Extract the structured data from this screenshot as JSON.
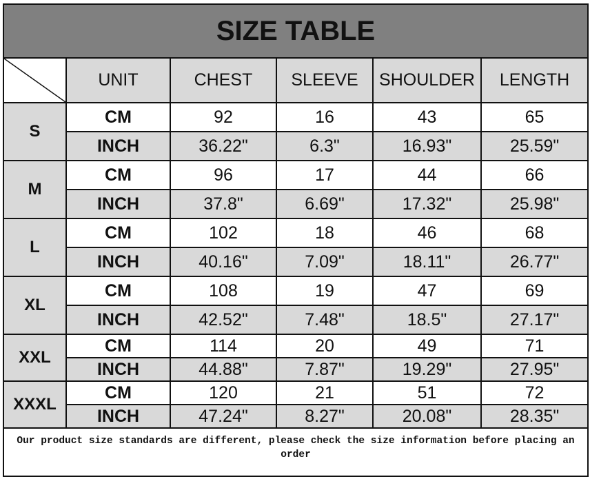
{
  "title": "SIZE TABLE",
  "headers": [
    "UNIT",
    "CHEST",
    "SLEEVE",
    "SHOULDER",
    "LENGTH"
  ],
  "sizes": [
    {
      "size": "S",
      "cm": {
        "unit": "CM",
        "values": [
          "92",
          "16",
          "43",
          "65"
        ]
      },
      "inch": {
        "unit": "INCH",
        "values": [
          "36.22\"",
          "6.3\"",
          "16.93\"",
          "25.59\""
        ]
      }
    },
    {
      "size": "M",
      "cm": {
        "unit": "CM",
        "values": [
          "96",
          "17",
          "44",
          "66"
        ]
      },
      "inch": {
        "unit": "INCH",
        "values": [
          "37.8\"",
          "6.69\"",
          "17.32\"",
          "25.98\""
        ]
      }
    },
    {
      "size": "L",
      "cm": {
        "unit": "CM",
        "values": [
          "102",
          "18",
          "46",
          "68"
        ]
      },
      "inch": {
        "unit": "INCH",
        "values": [
          "40.16\"",
          "7.09\"",
          "18.11\"",
          "26.77\""
        ]
      }
    },
    {
      "size": "XL",
      "cm": {
        "unit": "CM",
        "values": [
          "108",
          "19",
          "47",
          "69"
        ]
      },
      "inch": {
        "unit": "INCH",
        "values": [
          "42.52\"",
          "7.48\"",
          "18.5\"",
          "27.17\""
        ]
      }
    },
    {
      "size": "XXL",
      "cm": {
        "unit": "CM",
        "values": [
          "114",
          "20",
          "49",
          "71"
        ]
      },
      "inch": {
        "unit": "INCH",
        "values": [
          "44.88\"",
          "7.87\"",
          "19.29\"",
          "27.95\""
        ]
      }
    },
    {
      "size": "XXXL",
      "cm": {
        "unit": "CM",
        "values": [
          "120",
          "21",
          "51",
          "72"
        ]
      },
      "inch": {
        "unit": "INCH",
        "values": [
          "47.24\"",
          "8.27\"",
          "20.08\"",
          "28.35\""
        ]
      }
    }
  ],
  "note": "Our product size standards are different, please check the size information before placing an order",
  "colors": {
    "title_bg": "#808080",
    "shade": "#d9d9d9",
    "border": "#111111"
  }
}
